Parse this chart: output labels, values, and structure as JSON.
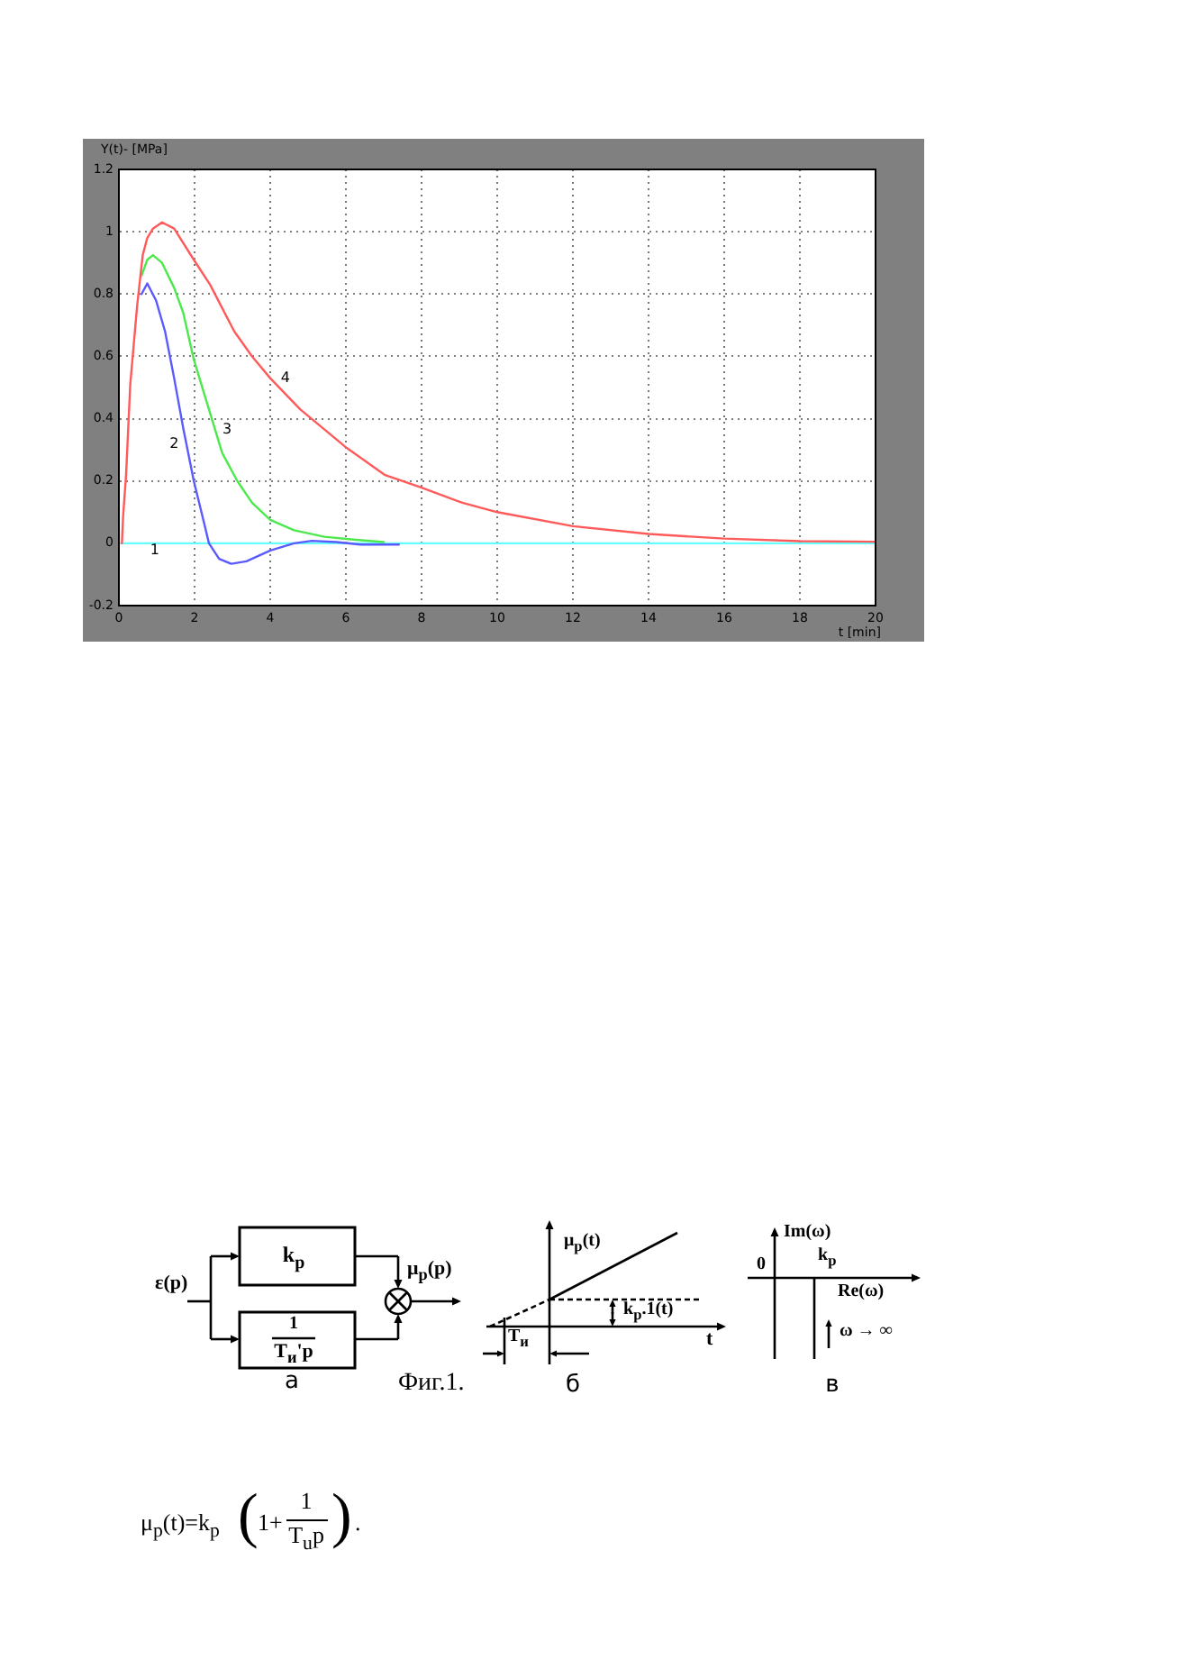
{
  "chart_data": [
    {
      "type": "line",
      "xlabel": "t [min]",
      "ylabel": "Y(t)- [MPa]",
      "xlim": [
        0,
        20
      ],
      "xticks": [
        0,
        2,
        4,
        6,
        8,
        10,
        12,
        14,
        16,
        18,
        20
      ],
      "ylim": [
        -0.2,
        1.2
      ],
      "yticks": [
        -0.2,
        0,
        0.2,
        0.4,
        0.6,
        0.8,
        1,
        1.2
      ],
      "grid": true,
      "marker": "none",
      "line_style": "solid",
      "series": [
        {
          "color": "#66ffff",
          "x": [
            0,
            20
          ],
          "values": [
            0,
            0
          ]
        },
        {
          "color": "#5a5aff",
          "x": [
            0.6,
            0.75,
            0.98,
            1.22,
            1.46,
            1.7,
            1.98,
            2.25,
            2.38,
            2.65,
            2.97,
            3.37,
            4.0,
            4.63,
            5.1,
            5.75,
            6.38,
            7.4
          ],
          "values": [
            0.8,
            0.834,
            0.78,
            0.68,
            0.53,
            0.37,
            0.2,
            0.066,
            0,
            -0.05,
            -0.066,
            -0.058,
            -0.023,
            0,
            0.008,
            0.004,
            -0.004,
            -0.004
          ]
        },
        {
          "color": "#4ce84c",
          "x": [
            0.6,
            0.75,
            0.9,
            1.14,
            1.46,
            1.7,
            1.98,
            2.33,
            2.73,
            3.13,
            3.52,
            4.0,
            4.63,
            5.43,
            6.2,
            7.0
          ],
          "values": [
            0.86,
            0.91,
            0.925,
            0.9,
            0.82,
            0.74,
            0.59,
            0.45,
            0.29,
            0.2,
            0.13,
            0.075,
            0.042,
            0.021,
            0.012,
            0.004
          ]
        },
        {
          "color": "#ff5a5a",
          "x": [
            0.08,
            0.11,
            0.19,
            0.3,
            0.48,
            0.63,
            0.75,
            0.9,
            1.14,
            1.46,
            1.98,
            2.41,
            3.05,
            3.52,
            4.0,
            4.79,
            5.98,
            7.02,
            7.97,
            9.08,
            10.0,
            12.0,
            14.0,
            16.0,
            18.0,
            20.0
          ],
          "values": [
            0,
            0.085,
            0.22,
            0.51,
            0.76,
            0.925,
            0.98,
            1.01,
            1.03,
            1.01,
            0.91,
            0.83,
            0.68,
            0.6,
            0.53,
            0.43,
            0.31,
            0.22,
            0.18,
            0.13,
            0.1,
            0.055,
            0.03,
            0.015,
            0.007,
            0.005
          ]
        }
      ],
      "annotations": [
        {
          "text": "1",
          "x": 0.95,
          "y": -0.023
        },
        "2",
        "3",
        "4"
      ]
    },
    {
      "type": "other",
      "annotations": [
        "ε(p)",
        "k$_{p}$",
        "1",
        "T$_{и}$'p",
        "μ$_{p}$(p)",
        "а",
        "μ$_{p}$(t)",
        "k$_{p}$.1(t)",
        "T$_{и}$",
        "t",
        "б",
        "Im(ω)",
        "0",
        "k$_{p}$",
        "Re(ω)",
        "ω → ∞",
        "в",
        "Фиг.1.",
        "μ$_{p}$(t)=k$_{p}$",
        "(",
        "1+",
        "1",
        "T$_{u}$p",
        ")",
        "."
      ]
    }
  ]
}
